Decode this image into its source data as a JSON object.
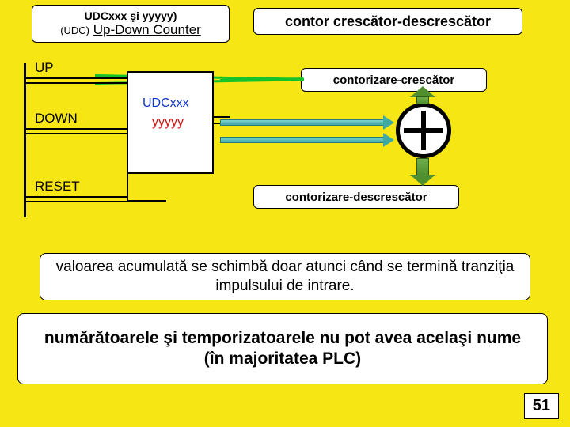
{
  "background_color": "#f6e614",
  "title": {
    "line1": "UDCxxx şi yyyyy)",
    "line2_small": "(UDC)",
    "line2_main": "Up-Down Counter"
  },
  "labels": {
    "main": "contor crescător-descrescător",
    "sub_up": "contorizare-crescător",
    "sub_down": "contorizare-descrescător"
  },
  "diagram": {
    "terminals": {
      "up": "UP",
      "down": "DOWN",
      "reset": "RESET"
    },
    "counter": {
      "name": "UDCxxx",
      "preset": "yyyyy"
    },
    "colors": {
      "name_color": "#1034c8",
      "preset_color": "#d11010",
      "teal_arrow": "#3fa9a3",
      "green_arrow": "#4f8f2e",
      "bright_green_line": "#16c22a"
    }
  },
  "note": "valoarea acumulată se schimbă doar atunci când se termină tranziţia impulsului de intrare.",
  "warning": "numărătoarele şi temporizatoarele nu pot avea acelaşi nume\n(în majoritatea PLC)",
  "page_number": "51"
}
